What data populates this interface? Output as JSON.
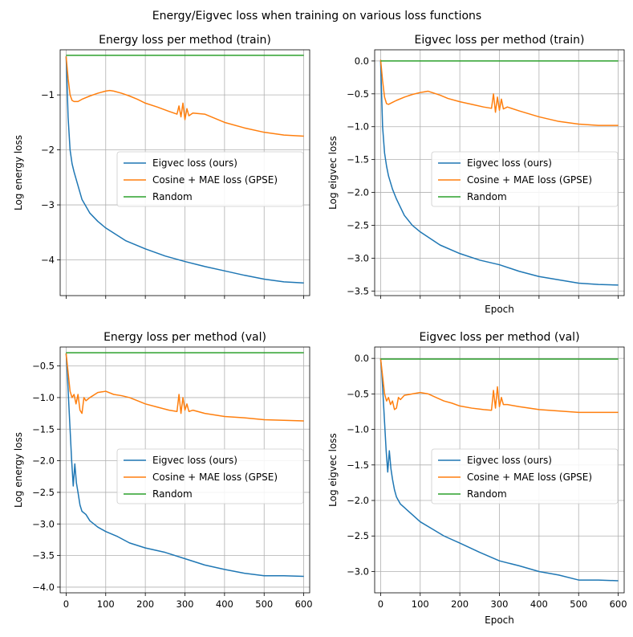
{
  "figure": {
    "suptitle": "Energy/Eigvec loss when training on various loss functions"
  },
  "chart_data": [
    {
      "type": "line",
      "title": "Energy loss per method (train)",
      "xlabel": "",
      "ylabel": "Log energy loss",
      "xlim": [
        -15,
        615
      ],
      "ylim": [
        -4.65,
        -0.18
      ],
      "xticks": [
        0,
        100,
        200,
        300,
        400,
        500,
        600
      ],
      "xticklabels": [
        "",
        "",
        "",
        "",
        "",
        "",
        ""
      ],
      "yticks": [
        -4,
        -3,
        -2,
        -1
      ],
      "yticklabels": [
        "−4",
        "−3",
        "−2",
        "−1"
      ],
      "grid": true,
      "legend_position": "center-right",
      "series": [
        {
          "name": "Eigvec loss (ours)",
          "color": "#1f77b4",
          "x": [
            0,
            2,
            5,
            10,
            15,
            20,
            30,
            40,
            60,
            80,
            100,
            150,
            200,
            250,
            300,
            350,
            400,
            450,
            500,
            550,
            600
          ],
          "y": [
            -0.3,
            -0.7,
            -1.4,
            -2.0,
            -2.25,
            -2.4,
            -2.65,
            -2.9,
            -3.15,
            -3.3,
            -3.42,
            -3.65,
            -3.8,
            -3.93,
            -4.03,
            -4.12,
            -4.2,
            -4.28,
            -4.35,
            -4.4,
            -4.42
          ]
        },
        {
          "name": "Cosine + MAE loss (GPSE)",
          "color": "#ff7f0e",
          "x": [
            0,
            5,
            10,
            15,
            20,
            30,
            40,
            60,
            80,
            100,
            110,
            120,
            140,
            160,
            180,
            200,
            230,
            260,
            280,
            285,
            290,
            295,
            300,
            305,
            310,
            320,
            350,
            400,
            450,
            500,
            550,
            600
          ],
          "y": [
            -0.3,
            -0.7,
            -1.0,
            -1.1,
            -1.12,
            -1.12,
            -1.08,
            -1.02,
            -0.97,
            -0.93,
            -0.92,
            -0.93,
            -0.97,
            -1.02,
            -1.08,
            -1.15,
            -1.22,
            -1.3,
            -1.35,
            -1.2,
            -1.4,
            -1.15,
            -1.45,
            -1.25,
            -1.38,
            -1.33,
            -1.35,
            -1.5,
            -1.6,
            -1.68,
            -1.73,
            -1.75
          ]
        },
        {
          "name": "Random",
          "color": "#2ca02c",
          "x": [
            0,
            600
          ],
          "y": [
            -0.28,
            -0.28
          ]
        }
      ]
    },
    {
      "type": "line",
      "title": "Eigvec loss per method (train)",
      "xlabel": "Epoch",
      "ylabel": "Log eigvec loss",
      "xlim": [
        -15,
        615
      ],
      "ylim": [
        -3.57,
        0.17
      ],
      "xticks": [
        0,
        100,
        200,
        300,
        400,
        500,
        600
      ],
      "xticklabels": [
        "",
        "",
        "",
        "",
        "",
        "",
        ""
      ],
      "yticks": [
        -3.5,
        -3.0,
        -2.5,
        -2.0,
        -1.5,
        -1.0,
        -0.5,
        0.0
      ],
      "yticklabels": [
        "−3.5",
        "−3.0",
        "−2.5",
        "−2.0",
        "−1.5",
        "−1.0",
        "−0.5",
        "0.0"
      ],
      "grid": true,
      "legend_position": "center-right",
      "series": [
        {
          "name": "Eigvec loss (ours)",
          "color": "#1f77b4",
          "x": [
            0,
            2,
            5,
            10,
            15,
            20,
            30,
            40,
            60,
            80,
            100,
            150,
            200,
            250,
            300,
            350,
            400,
            450,
            500,
            550,
            600
          ],
          "y": [
            0.0,
            -0.4,
            -1.0,
            -1.4,
            -1.6,
            -1.75,
            -1.95,
            -2.1,
            -2.35,
            -2.5,
            -2.6,
            -2.8,
            -2.93,
            -3.03,
            -3.1,
            -3.2,
            -3.28,
            -3.33,
            -3.38,
            -3.4,
            -3.41
          ]
        },
        {
          "name": "Cosine + MAE loss (GPSE)",
          "color": "#ff7f0e",
          "x": [
            0,
            5,
            10,
            15,
            20,
            30,
            40,
            60,
            80,
            100,
            110,
            120,
            130,
            150,
            170,
            200,
            230,
            260,
            280,
            285,
            290,
            295,
            300,
            305,
            310,
            320,
            350,
            400,
            450,
            500,
            550,
            600
          ],
          "y": [
            0.02,
            -0.3,
            -0.55,
            -0.65,
            -0.66,
            -0.63,
            -0.6,
            -0.55,
            -0.51,
            -0.48,
            -0.47,
            -0.46,
            -0.48,
            -0.52,
            -0.57,
            -0.62,
            -0.66,
            -0.7,
            -0.72,
            -0.5,
            -0.78,
            -0.55,
            -0.75,
            -0.58,
            -0.73,
            -0.7,
            -0.76,
            -0.85,
            -0.92,
            -0.96,
            -0.98,
            -0.98
          ]
        },
        {
          "name": "Random",
          "color": "#2ca02c",
          "x": [
            0,
            600
          ],
          "y": [
            0.0,
            0.0
          ]
        }
      ]
    },
    {
      "type": "line",
      "title": "Energy loss per method (val)",
      "xlabel": "",
      "ylabel": "Log energy loss",
      "xlim": [
        -15,
        615
      ],
      "ylim": [
        -4.09,
        -0.2
      ],
      "xticks": [
        0,
        100,
        200,
        300,
        400,
        500,
        600
      ],
      "xticklabels": [
        "0",
        "100",
        "200",
        "300",
        "400",
        "500",
        "600"
      ],
      "yticks": [
        -4.0,
        -3.5,
        -3.0,
        -2.5,
        -2.0,
        -1.5,
        -1.0,
        -0.5
      ],
      "yticklabels": [
        "−4.0",
        "−3.5",
        "−3.0",
        "−2.5",
        "−2.0",
        "−1.5",
        "−1.0",
        "−0.5"
      ],
      "grid": true,
      "legend_position": "center-right",
      "series": [
        {
          "name": "Eigvec loss (ours)",
          "color": "#1f77b4",
          "x": [
            0,
            3,
            6,
            10,
            14,
            18,
            22,
            26,
            30,
            35,
            40,
            50,
            60,
            80,
            100,
            130,
            160,
            200,
            250,
            300,
            350,
            400,
            450,
            500,
            550,
            600
          ],
          "y": [
            -0.3,
            -0.6,
            -1.0,
            -1.5,
            -2.0,
            -2.4,
            -2.05,
            -2.35,
            -2.5,
            -2.7,
            -2.8,
            -2.85,
            -2.95,
            -3.05,
            -3.12,
            -3.2,
            -3.3,
            -3.38,
            -3.45,
            -3.55,
            -3.65,
            -3.72,
            -3.78,
            -3.82,
            -3.82,
            -3.83
          ]
        },
        {
          "name": "Cosine + MAE loss (GPSE)",
          "color": "#ff7f0e",
          "x": [
            0,
            5,
            10,
            15,
            20,
            25,
            30,
            35,
            40,
            45,
            50,
            60,
            80,
            100,
            120,
            140,
            160,
            180,
            200,
            230,
            260,
            280,
            285,
            290,
            295,
            300,
            305,
            310,
            320,
            350,
            400,
            450,
            500,
            550,
            600
          ],
          "y": [
            -0.3,
            -0.6,
            -0.9,
            -1.0,
            -0.95,
            -1.1,
            -0.95,
            -1.2,
            -1.25,
            -1.0,
            -1.05,
            -1.0,
            -0.92,
            -0.9,
            -0.95,
            -0.97,
            -1.0,
            -1.05,
            -1.1,
            -1.15,
            -1.2,
            -1.22,
            -0.95,
            -1.25,
            -1.0,
            -1.2,
            -1.1,
            -1.22,
            -1.2,
            -1.25,
            -1.3,
            -1.32,
            -1.35,
            -1.36,
            -1.37
          ]
        },
        {
          "name": "Random",
          "color": "#2ca02c",
          "x": [
            0,
            600
          ],
          "y": [
            -0.29,
            -0.29
          ]
        }
      ]
    },
    {
      "type": "line",
      "title": "Eigvec loss per method (val)",
      "xlabel": "Epoch",
      "ylabel": "Log eigvec loss",
      "xlim": [
        -15,
        615
      ],
      "ylim": [
        -3.3,
        0.16
      ],
      "xticks": [
        0,
        100,
        200,
        300,
        400,
        500,
        600
      ],
      "xticklabels": [
        "0",
        "100",
        "200",
        "300",
        "400",
        "500",
        "600"
      ],
      "yticks": [
        -3.0,
        -2.5,
        -2.0,
        -1.5,
        -1.0,
        -0.5,
        0.0
      ],
      "yticklabels": [
        "−3.0",
        "−2.5",
        "−2.0",
        "−1.5",
        "−1.0",
        "−0.5",
        "0.0"
      ],
      "grid": true,
      "legend_position": "center-right",
      "series": [
        {
          "name": "Eigvec loss (ours)",
          "color": "#1f77b4",
          "x": [
            0,
            3,
            6,
            10,
            14,
            18,
            22,
            26,
            30,
            35,
            40,
            50,
            60,
            80,
            100,
            130,
            160,
            200,
            250,
            300,
            350,
            400,
            450,
            500,
            550,
            600
          ],
          "y": [
            0.0,
            -0.2,
            -0.5,
            -0.9,
            -1.3,
            -1.6,
            -1.3,
            -1.55,
            -1.7,
            -1.85,
            -1.95,
            -2.05,
            -2.1,
            -2.2,
            -2.3,
            -2.4,
            -2.5,
            -2.6,
            -2.73,
            -2.85,
            -2.92,
            -3.0,
            -3.05,
            -3.12,
            -3.12,
            -3.13
          ]
        },
        {
          "name": "Cosine + MAE loss (GPSE)",
          "color": "#ff7f0e",
          "x": [
            0,
            5,
            10,
            15,
            20,
            25,
            30,
            35,
            40,
            45,
            50,
            60,
            80,
            100,
            120,
            140,
            160,
            180,
            200,
            230,
            260,
            280,
            285,
            290,
            295,
            300,
            305,
            310,
            320,
            350,
            400,
            450,
            500,
            550,
            600
          ],
          "y": [
            0.0,
            -0.25,
            -0.5,
            -0.6,
            -0.55,
            -0.65,
            -0.6,
            -0.72,
            -0.7,
            -0.55,
            -0.58,
            -0.52,
            -0.5,
            -0.48,
            -0.5,
            -0.55,
            -0.6,
            -0.63,
            -0.67,
            -0.7,
            -0.72,
            -0.73,
            -0.45,
            -0.7,
            -0.4,
            -0.68,
            -0.55,
            -0.65,
            -0.65,
            -0.68,
            -0.72,
            -0.74,
            -0.76,
            -0.76,
            -0.76
          ]
        },
        {
          "name": "Random",
          "color": "#2ca02c",
          "x": [
            0,
            600
          ],
          "y": [
            -0.01,
            -0.01
          ]
        }
      ]
    }
  ]
}
